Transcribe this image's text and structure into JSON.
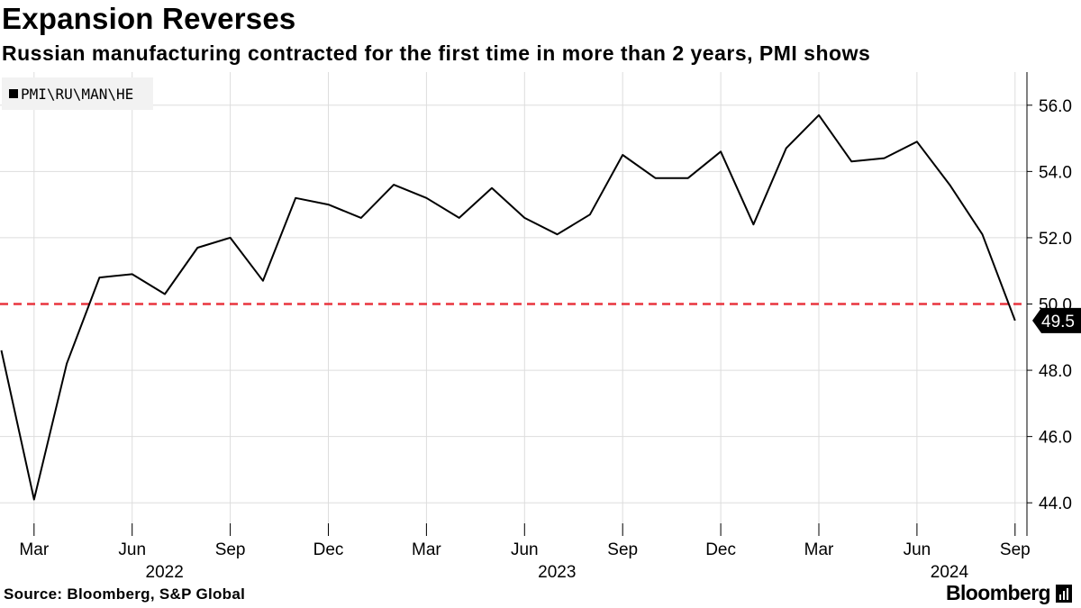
{
  "header": {
    "title": "Expansion Reverses",
    "subtitle": "Russian manufacturing contracted for the first time in more than 2 years, PMI shows"
  },
  "legend": {
    "label": "PMI\\RU\\MAN\\HE"
  },
  "footer": {
    "source": "Source: Bloomberg, S&P Global",
    "brand": "Bloomberg"
  },
  "colors": {
    "line": "#000000",
    "threshold": "#e8343e",
    "grid": "#dddddd",
    "last_label_bg": "#000000",
    "last_label_text": "#ffffff"
  },
  "chart_data": {
    "type": "line",
    "title": "Expansion Reverses",
    "subtitle": "Russian manufacturing contracted for the first time in more than 2 years, PMI shows",
    "series": [
      {
        "name": "PMI\\RU\\MAN\\HE",
        "x": [
          "2022-02",
          "2022-03",
          "2022-04",
          "2022-05",
          "2022-06",
          "2022-07",
          "2022-08",
          "2022-09",
          "2022-10",
          "2022-11",
          "2022-12",
          "2023-01",
          "2023-02",
          "2023-03",
          "2023-04",
          "2023-05",
          "2023-06",
          "2023-07",
          "2023-08",
          "2023-09",
          "2023-10",
          "2023-11",
          "2023-12",
          "2024-01",
          "2024-02",
          "2024-03",
          "2024-04",
          "2024-05",
          "2024-06",
          "2024-07",
          "2024-08",
          "2024-09"
        ],
        "values": [
          48.6,
          44.1,
          48.2,
          50.8,
          50.9,
          50.3,
          51.7,
          52.0,
          50.7,
          53.2,
          53.0,
          52.6,
          53.6,
          53.2,
          52.6,
          53.5,
          52.6,
          52.1,
          52.7,
          54.5,
          53.8,
          53.8,
          54.6,
          52.4,
          54.7,
          55.7,
          54.3,
          54.4,
          54.9,
          53.6,
          52.1,
          49.5
        ]
      }
    ],
    "reference_line": {
      "value": 50.0,
      "style": "dashed"
    },
    "last_value_label": "49.5",
    "ylim": [
      43.0,
      57.0
    ],
    "y_ticks": [
      44.0,
      46.0,
      48.0,
      50.0,
      52.0,
      54.0,
      56.0
    ],
    "y_tick_labels": [
      "44.0",
      "46.0",
      "48.0",
      "50.0",
      "52.0",
      "54.0",
      "56.0"
    ],
    "x_ticks": [
      {
        "at": "2022-03",
        "label": "Mar"
      },
      {
        "at": "2022-06",
        "label": "Jun"
      },
      {
        "at": "2022-09",
        "label": "Sep"
      },
      {
        "at": "2022-12",
        "label": "Dec"
      },
      {
        "at": "2023-03",
        "label": "Mar"
      },
      {
        "at": "2023-06",
        "label": "Jun"
      },
      {
        "at": "2023-09",
        "label": "Sep"
      },
      {
        "at": "2023-12",
        "label": "Dec"
      },
      {
        "at": "2024-03",
        "label": "Mar"
      },
      {
        "at": "2024-06",
        "label": "Jun"
      },
      {
        "at": "2024-09",
        "label": "Sep"
      }
    ],
    "year_labels": [
      {
        "at": "2022-06",
        "label": "2022"
      },
      {
        "at": "2023-06",
        "label": "2023"
      },
      {
        "at": "2024-06",
        "label": "2024"
      }
    ],
    "y_axis_position": "right",
    "grid": true,
    "legend_position": "top-left"
  }
}
